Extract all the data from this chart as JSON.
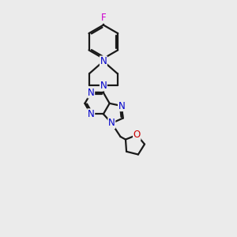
{
  "background_color": "#ebebeb",
  "bond_color": "#1a1a1a",
  "nitrogen_color": "#0000cc",
  "oxygen_color": "#cc0000",
  "fluorine_color": "#cc00cc",
  "line_width": 1.6,
  "figsize": [
    3.0,
    3.0
  ],
  "dpi": 100,
  "xlim": [
    0,
    10
  ],
  "ylim": [
    0,
    10
  ]
}
